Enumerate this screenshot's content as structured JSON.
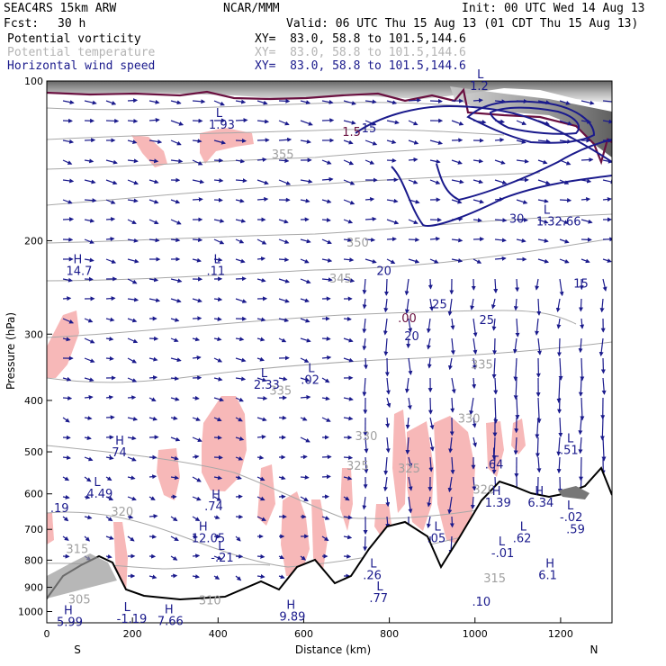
{
  "header": {
    "model": "SEAC4RS 15km ARW",
    "org": "NCAR/MMM",
    "init": "Init: 00 UTC Wed 14 Aug 13",
    "fcst_label": "Fcst:",
    "fcst_value": "30 h",
    "valid": "Valid: 06 UTC Thu 15 Aug 13 (01 CDT Thu 15 Aug 13)",
    "fields": [
      {
        "name": "Potential vorticity",
        "xy": "XY=  83.0, 58.8 to 101.5,144.6",
        "color": "#000000"
      },
      {
        "name": "Potential temperature",
        "xy": "XY=  83.0, 58.8 to 101.5,144.6",
        "color": "#b4b4b4"
      },
      {
        "name": "Horizontal wind speed",
        "xy": "XY=  83.0, 58.8 to 101.5,144.6",
        "color": "#1a1a8c"
      }
    ]
  },
  "colors": {
    "pv_fill": "#f7b8b8",
    "terrain": "#000000",
    "wind_contour": "#1a1a8c",
    "theta_contour": "#a8a8a8",
    "pv_contour": "#6a1040",
    "vector": "#1a1a8c"
  },
  "chart_data": {
    "type": "cross-section",
    "ylabel": "Pressure (hPa)",
    "xlabel": "Distance (km)",
    "x_end_labels": {
      "left": "S",
      "right": "N"
    },
    "xlim": [
      0,
      1320
    ],
    "ylim": [
      1050,
      100
    ],
    "y_scale": "log",
    "x_ticks": [
      "0",
      "200",
      "400",
      "600",
      "800",
      "1000",
      "1200"
    ],
    "y_ticks": [
      "100",
      "200",
      "300",
      "400",
      "500",
      "600",
      "700",
      "800",
      "900",
      "1000"
    ],
    "theta_labels": [
      {
        "text": "335",
        "x": 520,
        "p": 390
      },
      {
        "text": "335",
        "x": 990,
        "p": 348
      },
      {
        "text": "330",
        "x": 960,
        "p": 440
      },
      {
        "text": "330",
        "x": 720,
        "p": 475
      },
      {
        "text": "325",
        "x": 700,
        "p": 540
      },
      {
        "text": "325",
        "x": 820,
        "p": 547
      },
      {
        "text": "320",
        "x": 995,
        "p": 600
      },
      {
        "text": "320",
        "x": 150,
        "p": 660
      },
      {
        "text": "315",
        "x": 45,
        "p": 775
      },
      {
        "text": "315",
        "x": 1020,
        "p": 880
      },
      {
        "text": "310",
        "x": 355,
        "p": 970
      },
      {
        "text": "305",
        "x": 50,
        "p": 965
      },
      {
        "text": "345",
        "x": 660,
        "p": 240
      },
      {
        "text": "350",
        "x": 700,
        "p": 205
      },
      {
        "text": "355",
        "x": 525,
        "p": 140
      }
    ],
    "wind_labels": [
      {
        "text": "20",
        "x": 770,
        "p": 232
      },
      {
        "text": "25",
        "x": 900,
        "p": 268
      },
      {
        "text": "20",
        "x": 835,
        "p": 308
      },
      {
        "text": "25",
        "x": 1010,
        "p": 287
      },
      {
        "text": "30",
        "x": 1080,
        "p": 185
      },
      {
        "text": "15",
        "x": 735,
        "p": 125
      },
      {
        "text": "15",
        "x": 1230,
        "p": 245
      }
    ],
    "pv_labels": [
      {
        "text": "1.5",
        "x": 690,
        "p": 127
      },
      {
        "text": ".00",
        "x": 820,
        "p": 285
      }
    ],
    "extrema": [
      {
        "type": "L",
        "value": "1.93",
        "x": 395,
        "p": 123
      },
      {
        "type": "L",
        "value": "1.2",
        "x": 1005,
        "p": 104
      },
      {
        "type": "H",
        "value": "14.7",
        "x": 62,
        "p": 232
      },
      {
        "type": "L",
        "value": ".11",
        "x": 390,
        "p": 232
      },
      {
        "type": "L",
        "value": "2.33",
        "x": 500,
        "p": 380
      },
      {
        "type": "L",
        "value": ".02",
        "x": 610,
        "p": 372
      },
      {
        "type": "L",
        "value": "1.32.66",
        "x": 1160,
        "p": 187
      },
      {
        "type": "H",
        "value": ".74",
        "x": 160,
        "p": 510
      },
      {
        "type": "L",
        "value": ".51",
        "x": 1215,
        "p": 505
      },
      {
        "type": "L",
        "value": ".64",
        "x": 1040,
        "p": 537
      },
      {
        "type": "L",
        "value": "4.49",
        "x": 110,
        "p": 610
      },
      {
        "type": "H",
        "value": "1.39",
        "x": 1040,
        "p": 635
      },
      {
        "type": "H",
        "value": "6.34",
        "x": 1140,
        "p": 635
      },
      {
        "type": "H",
        "value": ".74",
        "x": 385,
        "p": 645
      },
      {
        "type": "L",
        "value": "-.02",
        "x": 1215,
        "p": 675
      },
      {
        "type": "",
        "value": ".59",
        "x": 1230,
        "p": 712
      },
      {
        "type": "",
        "value": ".19",
        "x": 25,
        "p": 650
      },
      {
        "type": "H",
        "value": "12.05",
        "x": 355,
        "p": 740
      },
      {
        "type": "L",
        "value": ".05",
        "x": 905,
        "p": 740
      },
      {
        "type": "L",
        "value": ".62",
        "x": 1105,
        "p": 740
      },
      {
        "type": "L",
        "value": "-.21",
        "x": 400,
        "p": 805
      },
      {
        "type": "L",
        "value": "-.01",
        "x": 1055,
        "p": 790
      },
      {
        "type": "L",
        "value": ".26",
        "x": 755,
        "p": 868
      },
      {
        "type": "H",
        "value": "6.1",
        "x": 1165,
        "p": 868
      },
      {
        "type": "L",
        "value": ".77",
        "x": 770,
        "p": 960
      },
      {
        "type": "",
        "value": ".10",
        "x": 1010,
        "p": 975
      },
      {
        "type": "L",
        "value": "-1.19",
        "x": 180,
        "p": 1050
      },
      {
        "type": "H",
        "value": "7.66",
        "x": 275,
        "p": 1060
      },
      {
        "type": "H",
        "value": "9.89",
        "x": 560,
        "p": 1040
      },
      {
        "type": "H",
        "value": "5.99",
        "x": 40,
        "p": 1065
      }
    ]
  }
}
